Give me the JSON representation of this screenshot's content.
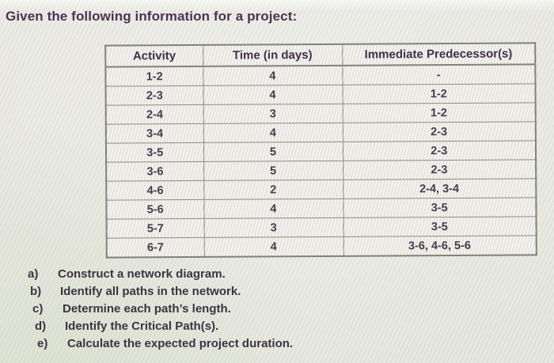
{
  "page": {
    "title": "Given the following information for a project:"
  },
  "table": {
    "headers": [
      "Activity",
      "Time (in days)",
      "Immediate Predecessor(s)"
    ],
    "rows": [
      {
        "activity": "1-2",
        "time": "4",
        "predecessors": "-"
      },
      {
        "activity": "2-3",
        "time": "4",
        "predecessors": "1-2"
      },
      {
        "activity": "2-4",
        "time": "3",
        "predecessors": "1-2"
      },
      {
        "activity": "3-4",
        "time": "4",
        "predecessors": "2-3"
      },
      {
        "activity": "3-5",
        "time": "5",
        "predecessors": "2-3"
      },
      {
        "activity": "3-6",
        "time": "5",
        "predecessors": "2-3"
      },
      {
        "activity": "4-6",
        "time": "2",
        "predecessors": "2-4, 3-4"
      },
      {
        "activity": "5-6",
        "time": "4",
        "predecessors": "3-5"
      },
      {
        "activity": "5-7",
        "time": "3",
        "predecessors": "3-5"
      },
      {
        "activity": "6-7",
        "time": "4",
        "predecessors": "3-6, 4-6, 5-6"
      }
    ]
  },
  "questions": [
    {
      "label": "a)",
      "text": "Construct a network diagram."
    },
    {
      "label": "b)",
      "text": "Identify all paths in the network."
    },
    {
      "label": "c)",
      "text": "Determine each path’s length."
    },
    {
      "label": "d)",
      "text": "Identify the Critical Path(s)."
    },
    {
      "label": "e)",
      "text": "Calculate the expected project duration."
    }
  ],
  "colors": {
    "page_background": "#e7e6e1",
    "table_border": "#8d8c86",
    "title_text": "#4c3353",
    "table_text": "#473a4d",
    "question_text": "#3c3443"
  }
}
